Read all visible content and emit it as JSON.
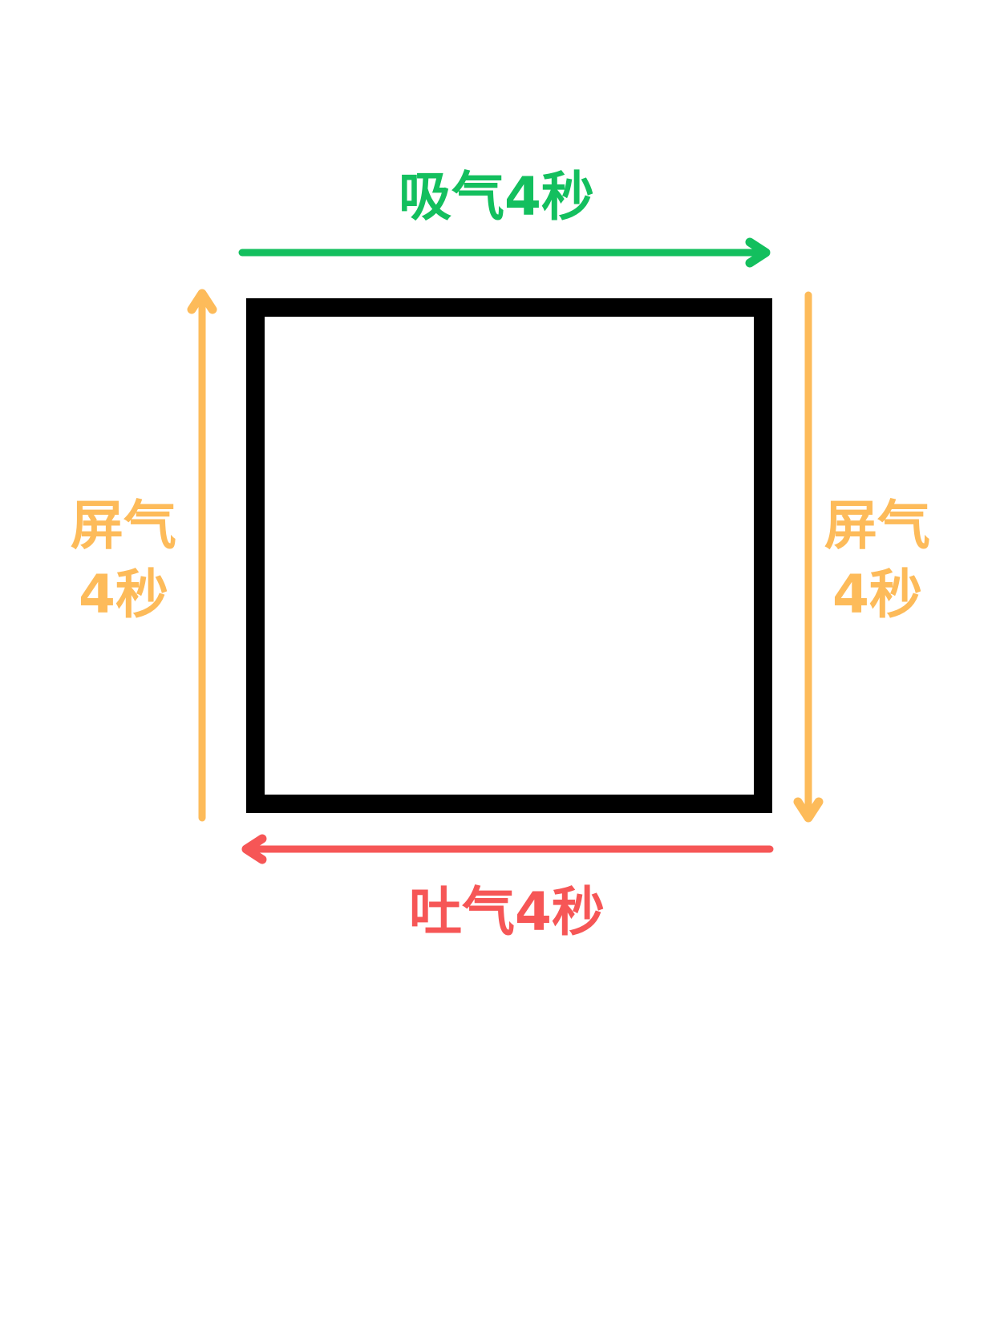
{
  "diagram": {
    "labels": {
      "inhale": "吸气4秒",
      "hold_left_line1": "屏气",
      "hold_left_line2": "4秒",
      "hold_right_line1": "屏气",
      "hold_right_line2": "4秒",
      "exhale": "吐气4秒"
    },
    "colors": {
      "inhale": "#13BF5E",
      "hold": "#FDBB5A",
      "exhale": "#F65656",
      "square": "#000000",
      "background": "#FFFFFF"
    }
  }
}
